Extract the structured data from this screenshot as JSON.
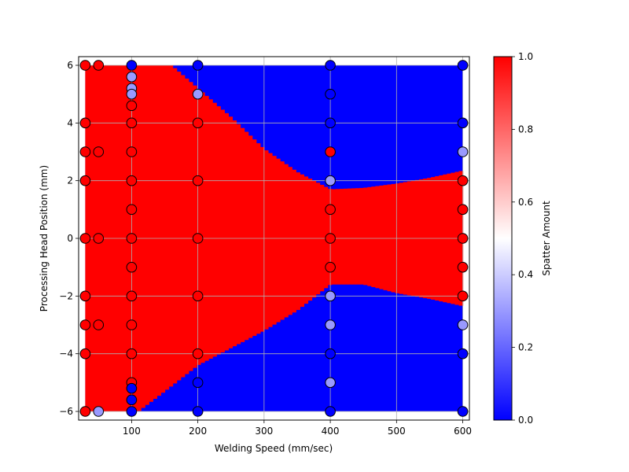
{
  "chart_data": {
    "type": "heatmap",
    "title": "",
    "xlabel": "Welding Speed (mm/sec)",
    "ylabel": "Processing Head Position (mm)",
    "xlim": [
      20,
      610
    ],
    "ylim": [
      -6.3,
      6.3
    ],
    "x_ticks": [
      100,
      200,
      300,
      400,
      500,
      600
    ],
    "y_ticks": [
      -6,
      -4,
      -2,
      0,
      2,
      4,
      6
    ],
    "x_tick_labels": [
      "100",
      "200",
      "300",
      "400",
      "500",
      "600"
    ],
    "y_tick_labels": [
      "−6",
      "−4",
      "−2",
      "0",
      "2",
      "4",
      "6"
    ],
    "grid": true,
    "colormap": "bwr",
    "colors": {
      "low": "#0000ff",
      "mid": "#ffffff",
      "high": "#ff0000"
    },
    "colorbar": {
      "label": "Spatter Amount",
      "range": [
        0.0,
        1.0
      ],
      "ticks": [
        0.0,
        0.2,
        0.4,
        0.6,
        0.8,
        1.0
      ],
      "tick_labels": [
        "0.0",
        "0.2",
        "0.4",
        "0.6",
        "0.8",
        "1.0"
      ]
    },
    "decision_region": {
      "x_range": [
        30,
        600
      ],
      "y_range": [
        -6,
        6
      ],
      "upper_boundary": [
        [
          160,
          6.0
        ],
        [
          200,
          5.2
        ],
        [
          250,
          4.2
        ],
        [
          300,
          3.1
        ],
        [
          350,
          2.3
        ],
        [
          400,
          1.7
        ],
        [
          450,
          1.75
        ],
        [
          500,
          1.9
        ],
        [
          550,
          2.1
        ],
        [
          600,
          2.35
        ]
      ],
      "lower_boundary": [
        [
          110,
          -6.0
        ],
        [
          150,
          -5.3
        ],
        [
          200,
          -4.4
        ],
        [
          250,
          -3.8
        ],
        [
          300,
          -3.2
        ],
        [
          350,
          -2.5
        ],
        [
          400,
          -1.6
        ],
        [
          450,
          -1.6
        ],
        [
          500,
          -1.9
        ],
        [
          550,
          -2.1
        ],
        [
          600,
          -2.35
        ]
      ],
      "inside_value": 1.0,
      "outside_value": 0.0
    },
    "points": [
      {
        "x": 30,
        "y": 6,
        "v": 1.0
      },
      {
        "x": 30,
        "y": 4,
        "v": 1.0
      },
      {
        "x": 30,
        "y": 3,
        "v": 1.0
      },
      {
        "x": 30,
        "y": 2,
        "v": 1.0
      },
      {
        "x": 30,
        "y": 0,
        "v": 1.0
      },
      {
        "x": 30,
        "y": -2,
        "v": 1.0
      },
      {
        "x": 30,
        "y": -3,
        "v": 1.0
      },
      {
        "x": 30,
        "y": -4,
        "v": 1.0
      },
      {
        "x": 30,
        "y": -6,
        "v": 1.0
      },
      {
        "x": 50,
        "y": 6,
        "v": 1.0
      },
      {
        "x": 50,
        "y": 3,
        "v": 1.0
      },
      {
        "x": 50,
        "y": 0,
        "v": 1.0
      },
      {
        "x": 50,
        "y": -3,
        "v": 1.0
      },
      {
        "x": 50,
        "y": -6,
        "v": 0.3
      },
      {
        "x": 100,
        "y": 6,
        "v": 0.0
      },
      {
        "x": 100,
        "y": 5.6,
        "v": 0.3
      },
      {
        "x": 100,
        "y": 5.2,
        "v": 0.3
      },
      {
        "x": 100,
        "y": 5,
        "v": 0.3
      },
      {
        "x": 100,
        "y": 4.6,
        "v": 1.0
      },
      {
        "x": 100,
        "y": 4,
        "v": 1.0
      },
      {
        "x": 100,
        "y": 3,
        "v": 1.0
      },
      {
        "x": 100,
        "y": 2,
        "v": 1.0
      },
      {
        "x": 100,
        "y": 1,
        "v": 1.0
      },
      {
        "x": 100,
        "y": 0,
        "v": 1.0
      },
      {
        "x": 100,
        "y": -1,
        "v": 1.0
      },
      {
        "x": 100,
        "y": -2,
        "v": 1.0
      },
      {
        "x": 100,
        "y": -3,
        "v": 1.0
      },
      {
        "x": 100,
        "y": -4,
        "v": 1.0
      },
      {
        "x": 100,
        "y": -5,
        "v": 1.0
      },
      {
        "x": 100,
        "y": -5.2,
        "v": 0.0
      },
      {
        "x": 100,
        "y": -5.6,
        "v": 0.0
      },
      {
        "x": 100,
        "y": -6,
        "v": 0.0
      },
      {
        "x": 200,
        "y": 6,
        "v": 0.0
      },
      {
        "x": 200,
        "y": 5,
        "v": 0.3
      },
      {
        "x": 200,
        "y": 4,
        "v": 1.0
      },
      {
        "x": 200,
        "y": 2,
        "v": 1.0
      },
      {
        "x": 200,
        "y": 0,
        "v": 1.0
      },
      {
        "x": 200,
        "y": -2,
        "v": 1.0
      },
      {
        "x": 200,
        "y": -4,
        "v": 1.0
      },
      {
        "x": 200,
        "y": -5,
        "v": 0.0
      },
      {
        "x": 200,
        "y": -6,
        "v": 0.0
      },
      {
        "x": 400,
        "y": 6,
        "v": 0.0
      },
      {
        "x": 400,
        "y": 5,
        "v": 0.0
      },
      {
        "x": 400,
        "y": 4,
        "v": 0.0
      },
      {
        "x": 400,
        "y": 3,
        "v": 1.0
      },
      {
        "x": 400,
        "y": 2,
        "v": 0.3
      },
      {
        "x": 400,
        "y": 1,
        "v": 1.0
      },
      {
        "x": 400,
        "y": 0,
        "v": 1.0
      },
      {
        "x": 400,
        "y": -1,
        "v": 1.0
      },
      {
        "x": 400,
        "y": -2,
        "v": 0.3
      },
      {
        "x": 400,
        "y": -3,
        "v": 0.3
      },
      {
        "x": 400,
        "y": -4,
        "v": 0.0
      },
      {
        "x": 400,
        "y": -5,
        "v": 0.3
      },
      {
        "x": 400,
        "y": -6,
        "v": 0.0
      },
      {
        "x": 600,
        "y": 6,
        "v": 0.0
      },
      {
        "x": 600,
        "y": 4,
        "v": 0.0
      },
      {
        "x": 600,
        "y": 3,
        "v": 0.3
      },
      {
        "x": 600,
        "y": 2,
        "v": 1.0
      },
      {
        "x": 600,
        "y": 1,
        "v": 1.0
      },
      {
        "x": 600,
        "y": 0,
        "v": 1.0
      },
      {
        "x": 600,
        "y": -1,
        "v": 1.0
      },
      {
        "x": 600,
        "y": -2,
        "v": 1.0
      },
      {
        "x": 600,
        "y": -3,
        "v": 0.3
      },
      {
        "x": 600,
        "y": -4,
        "v": 0.0
      },
      {
        "x": 600,
        "y": -6,
        "v": 0.0
      }
    ]
  }
}
